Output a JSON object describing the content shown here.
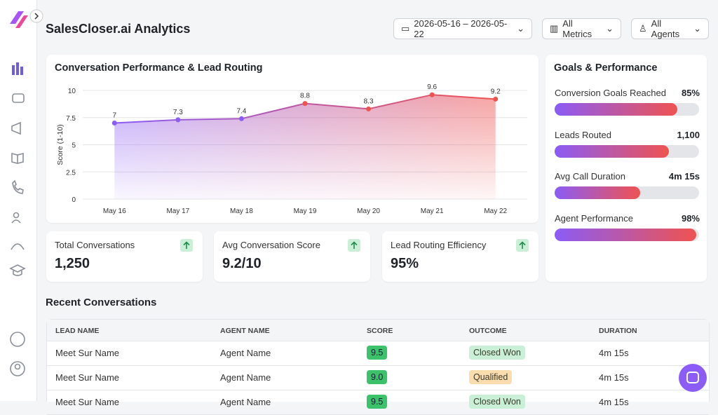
{
  "header": {
    "title": "SalesCloser.ai Analytics",
    "filters": [
      "2026-05-16 – 2026-05-22",
      "All Metrics",
      "All Agents"
    ]
  },
  "chart_data": {
    "type": "line",
    "title": "Conversation Performance & Lead Routing",
    "y_label": "Score (1-10)",
    "categories": [
      "May 16",
      "May 17",
      "May 18",
      "May 19",
      "May 20",
      "May 21",
      "May 22"
    ],
    "values": [
      7,
      7.3,
      7.4,
      8.8,
      8.3,
      9.6,
      9.2
    ],
    "ylim": [
      0,
      10
    ],
    "yticks": [
      0,
      2.5,
      5,
      7.5,
      10
    ],
    "grid": true,
    "color": "#8b5cf6",
    "color_end": "#ef5350"
  },
  "stats": [
    {
      "label": "Total Conversations",
      "value": "1,250"
    },
    {
      "label": "Avg Conversation Score",
      "value": "9.2/10"
    },
    {
      "label": "Lead Routing Efficiency",
      "value": "95%"
    }
  ],
  "goals": {
    "title": "Goals & Performance",
    "items": [
      {
        "label": "Conversion Goals Reached",
        "value": "85%",
        "progress": 85
      },
      {
        "label": "Leads Routed",
        "value": "1,100",
        "progress": 79
      },
      {
        "label": "Avg Call Duration",
        "value": "4m 15s",
        "progress": 59
      },
      {
        "label": "Agent Performance",
        "value": "98%",
        "progress": 98
      }
    ]
  },
  "table": {
    "title": "Recent Conversations",
    "columns": [
      "LEAD NAME",
      "AGENT NAME",
      "SCORE",
      "OUTCOME",
      "DURATION"
    ],
    "rows": [
      {
        "cells": [
          "Meet Sur Name",
          "Agent Name",
          "9.5",
          "Closed Won",
          "4m 15s"
        ],
        "outcome_color": "#c9f0d6"
      },
      {
        "cells": [
          "Meet Sur Name",
          "Agent Name",
          "9.0",
          "Qualified",
          "4m 15s"
        ],
        "outcome_color": "#fbdcae"
      },
      {
        "cells": [
          "Meet Sur Name",
          "Agent Name",
          "9.5",
          "Closed Won",
          "4m 15s"
        ],
        "outcome_color": "#c9f0d6"
      }
    ]
  }
}
